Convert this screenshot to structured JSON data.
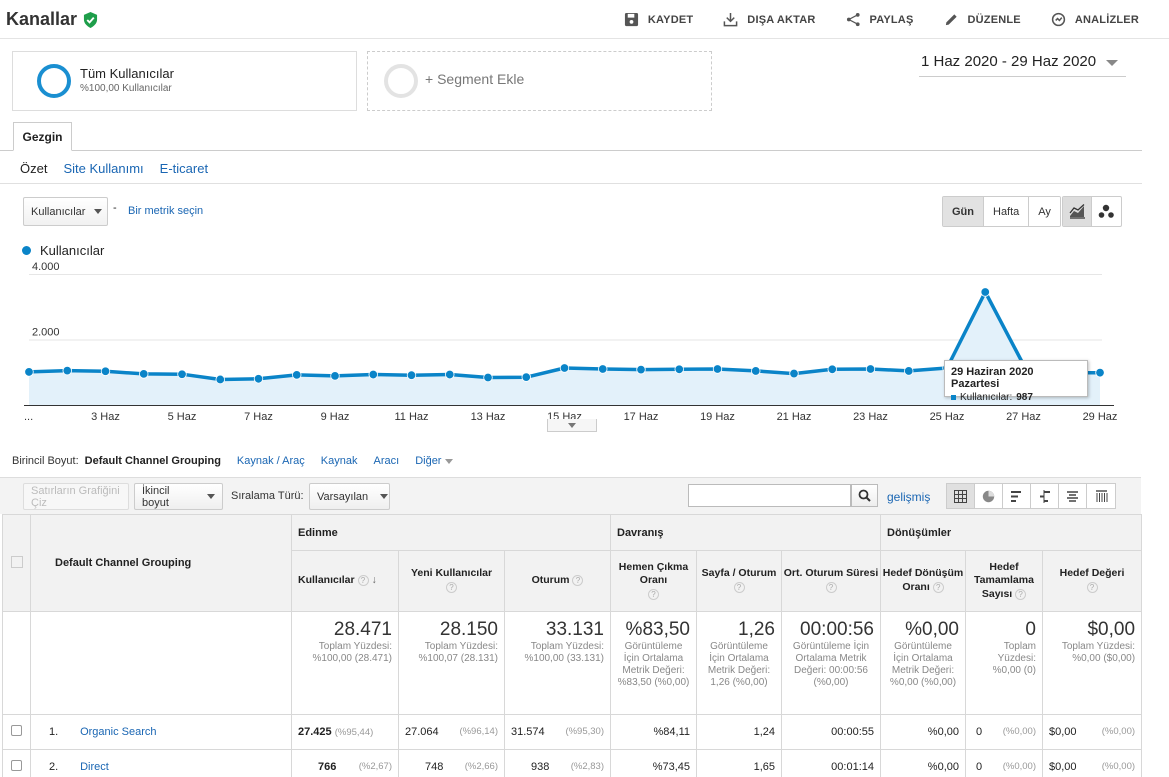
{
  "header": {
    "title": "Kanallar",
    "actions": [
      {
        "label": "KAYDET",
        "icon": "save-icon"
      },
      {
        "label": "DIŞA AKTAR",
        "icon": "export-icon"
      },
      {
        "label": "PAYLAŞ",
        "icon": "share-icon"
      },
      {
        "label": "DÜZENLE",
        "icon": "edit-icon"
      },
      {
        "label": "ANALİZLER",
        "icon": "insights-icon"
      }
    ]
  },
  "segments": {
    "active_name": "Tüm Kullanıcılar",
    "active_sub": "%100,00 Kullanıcılar",
    "add_label": "+ Segment Ekle"
  },
  "date_range": "1 Haz 2020 - 29 Haz 2020",
  "tabs": {
    "explorer": "Gezgin"
  },
  "subtabs": [
    "Özet",
    "Site Kullanımı",
    "E-ticaret"
  ],
  "metric": {
    "selected": "Kullanıcılar",
    "separator": "-",
    "pick": "Bir metrik seçin"
  },
  "granularity": [
    "Gün",
    "Hafta",
    "Ay"
  ],
  "legend": "Kullanıcılar",
  "chart_data": {
    "type": "area",
    "series": [
      {
        "name": "Kullanıcılar",
        "color": "#0a84c8",
        "values": [
          1010,
          1050,
          1030,
          950,
          940,
          780,
          800,
          920,
          890,
          930,
          910,
          930,
          840,
          850,
          1130,
          1100,
          1080,
          1090,
          1100,
          1040,
          960,
          1090,
          1100,
          1040,
          1130,
          3450,
          1230,
          987,
          987
        ]
      }
    ],
    "x": [
      "1 Haz",
      "2 Haz",
      "3 Haz",
      "4 Haz",
      "5 Haz",
      "6 Haz",
      "7 Haz",
      "8 Haz",
      "9 Haz",
      "10 Haz",
      "11 Haz",
      "12 Haz",
      "13 Haz",
      "14 Haz",
      "15 Haz",
      "16 Haz",
      "17 Haz",
      "18 Haz",
      "19 Haz",
      "20 Haz",
      "21 Haz",
      "22 Haz",
      "23 Haz",
      "24 Haz",
      "25 Haz",
      "26 Haz",
      "27 Haz",
      "28 Haz",
      "29 Haz"
    ],
    "x_tick_labels": [
      "...",
      "3 Haz",
      "5 Haz",
      "7 Haz",
      "9 Haz",
      "11 Haz",
      "13 Haz",
      "15 Haz",
      "17 Haz",
      "19 Haz",
      "21 Haz",
      "23 Haz",
      "25 Haz",
      "27 Haz",
      "29 Haz"
    ],
    "y_tick_labels": [
      "4.000",
      "2.000"
    ],
    "y_ticks": [
      4000,
      2000
    ],
    "ylim": [
      0,
      4000
    ],
    "tooltip": {
      "title": "29 Haziran 2020 Pazartesi",
      "label": "Kullanıcılar:",
      "value": "987"
    }
  },
  "dimensions": {
    "label": "Birincil Boyut:",
    "current": "Default Channel Grouping",
    "options": [
      "Kaynak / Araç",
      "Kaynak",
      "Aracı"
    ],
    "other": "Diğer"
  },
  "toolbar": {
    "plot_rows": "Satırların Grafiğini Çiz",
    "secondary": "İkincil boyut",
    "sort_label": "Sıralama Türü:",
    "sort_value": "Varsayılan",
    "advanced": "gelişmiş"
  },
  "table": {
    "dim_header": "Default Channel Grouping",
    "groups": [
      "Edinme",
      "Davranış",
      "Dönüşümler"
    ],
    "columns": [
      "Kullanıcılar",
      "Yeni Kullanıcılar",
      "Oturum",
      "Hemen Çıkma Oranı",
      "Sayfa / Oturum",
      "Ort. Oturum Süresi",
      "Hedef Dönüşüm Oranı",
      "Hedef Tamamlama Sayısı",
      "Hedef Değeri"
    ],
    "totals": [
      {
        "value": "28.471",
        "sub": "Toplam Yüzdesi: %100,00 (28.471)"
      },
      {
        "value": "28.150",
        "sub": "Toplam Yüzdesi: %100,07 (28.131)"
      },
      {
        "value": "33.131",
        "sub": "Toplam Yüzdesi: %100,00 (33.131)"
      },
      {
        "value": "%83,50",
        "sub": "Görüntüleme İçin Ortalama Metrik Değeri: %83,50 (%0,00)"
      },
      {
        "value": "1,26",
        "sub": "Görüntüleme İçin Ortalama Metrik Değeri: 1,26 (%0,00)"
      },
      {
        "value": "00:00:56",
        "sub": "Görüntüleme İçin Ortalama Metrik Değeri: 00:00:56 (%0,00)"
      },
      {
        "value": "%0,00",
        "sub": "Görüntüleme İçin Ortalama Metrik Değeri: %0,00 (%0,00)"
      },
      {
        "value": "0",
        "sub": "Toplam Yüzdesi: %0,00 (0)"
      },
      {
        "value": "$0,00",
        "sub": "Toplam Yüzdesi: %0,00 ($0,00)"
      }
    ],
    "rows": [
      {
        "idx": "1.",
        "name": "Organic Search",
        "users": "27.425",
        "users_pct": "(%95,44)",
        "new": "27.064",
        "new_pct": "(%96,14)",
        "sessions": "31.574",
        "sessions_pct": "(%95,30)",
        "bounce": "%84,11",
        "pages": "1,24",
        "duration": "00:00:55",
        "conv": "%0,00",
        "compl": "0",
        "compl_pct": "(%0,00)",
        "val": "$0,00",
        "val_pct": "(%0,00)"
      },
      {
        "idx": "2.",
        "name": "Direct",
        "users": "766",
        "users_pct": "(%2,67)",
        "new": "748",
        "new_pct": "(%2,66)",
        "sessions": "938",
        "sessions_pct": "(%2,83)",
        "bounce": "%73,45",
        "pages": "1,65",
        "duration": "00:01:14",
        "conv": "%0,00",
        "compl": "0",
        "compl_pct": "(%0,00)",
        "val": "$0,00",
        "val_pct": "(%0,00)"
      }
    ]
  }
}
